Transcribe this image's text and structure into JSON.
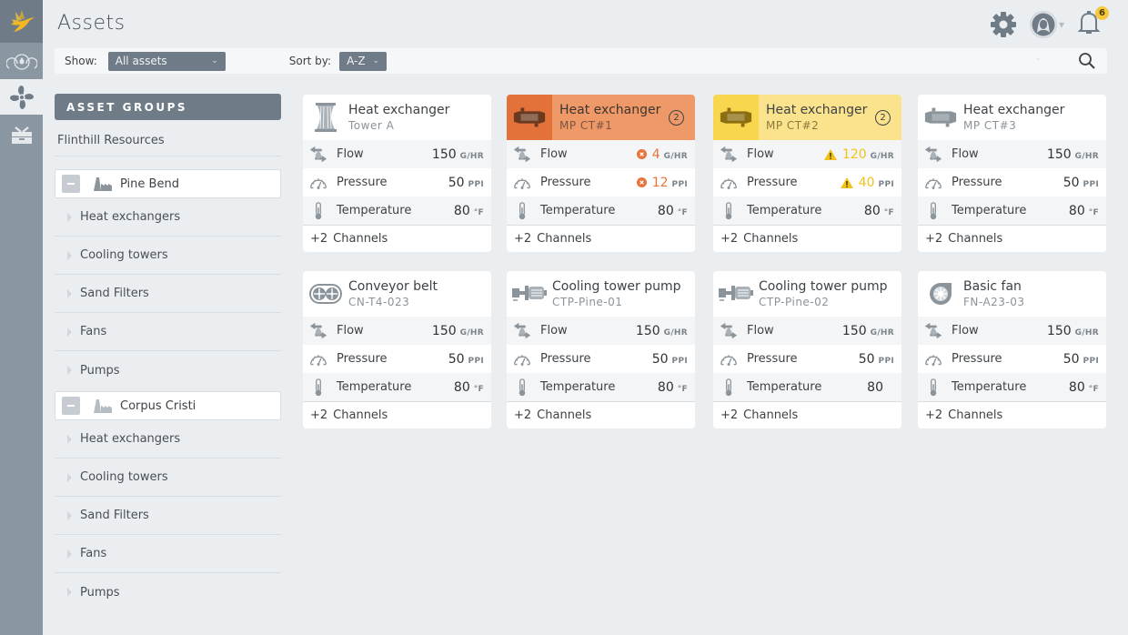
{
  "app": {
    "title": "Assets"
  },
  "colors": {
    "rail": "#8a97a2",
    "accent_critical": "#e2713a",
    "accent_warning": "#f8d74e",
    "notification_badge": "#f7c83b"
  },
  "rail": {
    "items": [
      {
        "icon": "hummingbird-logo-icon"
      },
      {
        "icon": "dashboard-gauges-icon"
      },
      {
        "icon": "fan-assets-icon",
        "active": true
      },
      {
        "icon": "toolbox-icon"
      }
    ]
  },
  "header": {
    "notifications_count": "6"
  },
  "filters": {
    "show_label": "Show:",
    "show_value": "All assets",
    "sort_label": "Sort by:",
    "sort_value": "A-Z"
  },
  "sidebar": {
    "header": "ASSET GROUPS",
    "org": "Flinthill Resources",
    "sites": [
      {
        "name": "Pine Bend",
        "categories": [
          "Heat exchangers",
          "Cooling towers",
          "Sand Filters",
          "Fans",
          "Pumps"
        ]
      },
      {
        "name": "Corpus Cristi",
        "categories": [
          "Heat exchangers",
          "Cooling towers",
          "Sand Filters",
          "Fans",
          "Pumps"
        ]
      }
    ]
  },
  "cards": [
    {
      "name": "Heat exchanger",
      "sub": "Tower A",
      "icon": "cooling-tower-icon",
      "state": "normal",
      "rows": [
        {
          "label": "Flow",
          "value": "150",
          "unit": "G/HR"
        },
        {
          "label": "Pressure",
          "value": "50",
          "unit": "PPI"
        },
        {
          "label": "Temperature",
          "value": "80",
          "unit": "°F"
        }
      ],
      "channels": "+2",
      "channels_label": "Channels"
    },
    {
      "name": "Heat exchanger",
      "sub": "MP CT#1",
      "icon": "heat-exchanger-icon",
      "state": "critical",
      "alert_count": "2",
      "rows": [
        {
          "label": "Flow",
          "value": "4",
          "unit": "G/HR",
          "status": "error"
        },
        {
          "label": "Pressure",
          "value": "12",
          "unit": "PPI",
          "status": "error"
        },
        {
          "label": "Temperature",
          "value": "80",
          "unit": "°F"
        }
      ],
      "channels": "+2",
      "channels_label": "Channels"
    },
    {
      "name": "Heat exchanger",
      "sub": "MP CT#2",
      "icon": "heat-exchanger-icon",
      "state": "warning",
      "alert_count": "2",
      "rows": [
        {
          "label": "Flow",
          "value": "120",
          "unit": "G/HR",
          "status": "warning"
        },
        {
          "label": "Pressure",
          "value": "40",
          "unit": "PPI",
          "status": "warning"
        },
        {
          "label": "Temperature",
          "value": "80",
          "unit": "°F"
        }
      ],
      "channels": "+2",
      "channels_label": "Channels"
    },
    {
      "name": "Heat exchanger",
      "sub": "MP CT#3",
      "icon": "heat-exchanger-icon",
      "state": "normal",
      "rows": [
        {
          "label": "Flow",
          "value": "150",
          "unit": "G/HR"
        },
        {
          "label": "Pressure",
          "value": "50",
          "unit": "PPI"
        },
        {
          "label": "Temperature",
          "value": "80",
          "unit": "°F"
        }
      ],
      "channels": "+2",
      "channels_label": "Channels"
    },
    {
      "name": "Conveyor belt",
      "sub": "CN-T4-023",
      "icon": "conveyor-belt-icon",
      "state": "normal",
      "rows": [
        {
          "label": "Flow",
          "value": "150",
          "unit": "G/HR"
        },
        {
          "label": "Pressure",
          "value": "50",
          "unit": "PPI"
        },
        {
          "label": "Temperature",
          "value": "80",
          "unit": "°F"
        }
      ],
      "channels": "+2",
      "channels_label": "Channels"
    },
    {
      "name": "Cooling tower pump",
      "sub": "CTP-Pine-01",
      "icon": "pump-icon",
      "state": "normal",
      "rows": [
        {
          "label": "Flow",
          "value": "150",
          "unit": "G/HR"
        },
        {
          "label": "Pressure",
          "value": "50",
          "unit": "PPI"
        },
        {
          "label": "Temperature",
          "value": "80",
          "unit": "°F"
        }
      ],
      "channels": "+2",
      "channels_label": "Channels"
    },
    {
      "name": "Cooling tower pump",
      "sub": "CTP-Pine-02",
      "icon": "pump-icon",
      "state": "normal",
      "rows": [
        {
          "label": "Flow",
          "value": "150",
          "unit": "G/HR"
        },
        {
          "label": "Pressure",
          "value": "50",
          "unit": "PPI"
        },
        {
          "label": "Temperature",
          "value": "80",
          "unit": ""
        }
      ],
      "channels": "+2",
      "channels_label": "Channels"
    },
    {
      "name": "Basic fan",
      "sub": "FN-A23-03",
      "icon": "fan-icon",
      "state": "normal",
      "rows": [
        {
          "label": "Flow",
          "value": "150",
          "unit": "G/HR"
        },
        {
          "label": "Pressure",
          "value": "50",
          "unit": "PPI"
        },
        {
          "label": "Temperature",
          "value": "80",
          "unit": "°F"
        }
      ],
      "channels": "+2",
      "channels_label": "Channels"
    }
  ]
}
